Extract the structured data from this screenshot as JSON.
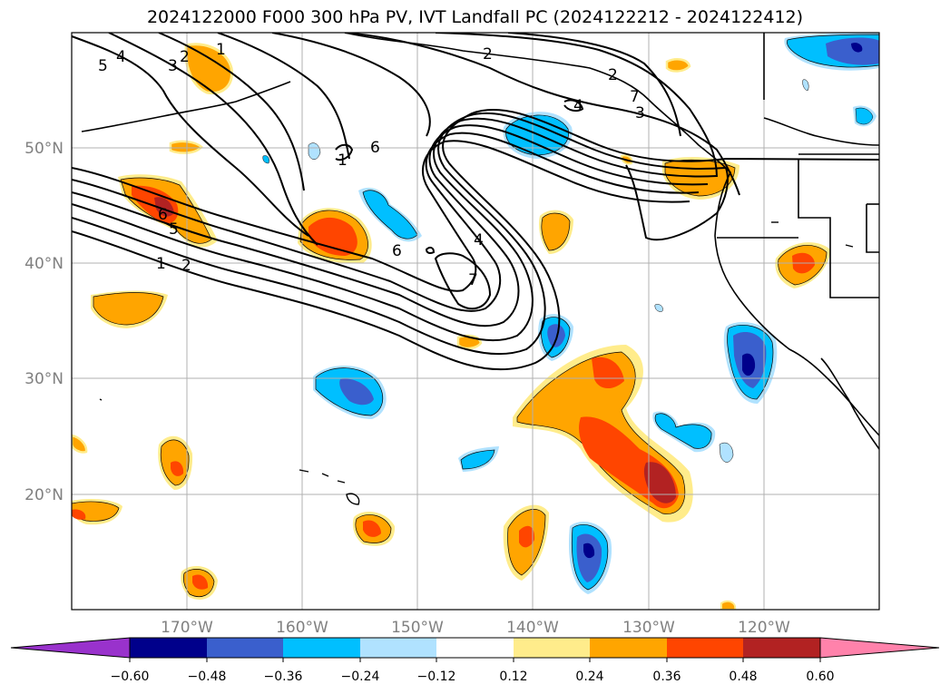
{
  "title": "2024122000 F000 300 hPa PV, IVT Landfall PC (2024122212 - 2024122412)",
  "lon_labels": [
    "170°W",
    "160°W",
    "150°W",
    "140°W",
    "130°W",
    "120°W"
  ],
  "lat_labels": [
    "50°N",
    "40°N",
    "30°N",
    "20°N"
  ],
  "colorbar": {
    "tick_labels": [
      "−0.60",
      "−0.48",
      "−0.36",
      "−0.24",
      "−0.12",
      "0.12",
      "0.24",
      "0.36",
      "0.48",
      "0.60"
    ],
    "colors": [
      "#9932cc",
      "#00008b",
      "#3a5fcd",
      "#00bfff",
      "#b0e2ff",
      "#ffffff",
      "#ffec8b",
      "#ffa500",
      "#ff4500",
      "#b22222",
      "#ff82ab"
    ]
  },
  "contour_labels": [
    "5",
    "4",
    "3",
    "2",
    "1",
    "2",
    "6",
    "1",
    "6",
    "5",
    "1",
    "2",
    "6",
    "4",
    "7",
    "2",
    "4",
    "3",
    "7"
  ]
}
